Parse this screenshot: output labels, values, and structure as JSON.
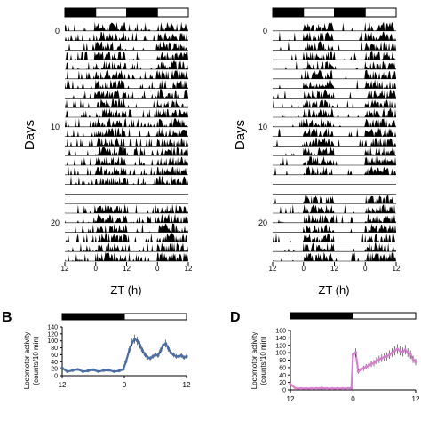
{
  "chart_data": [
    {
      "id": "actogram-left",
      "type": "heatmap",
      "ylabel": "Days",
      "xlabel": "ZT (h)",
      "x_ticks": [
        "12",
        "0",
        "12",
        "0",
        "12"
      ],
      "day_ticks": [
        0,
        10,
        20
      ],
      "day_count": 25,
      "lightdark_bar": [
        "dark",
        "light",
        "dark",
        "light"
      ],
      "missing_days": [
        17,
        18
      ]
    },
    {
      "id": "actogram-right",
      "type": "heatmap",
      "ylabel": "Days",
      "xlabel": "ZT (h)",
      "x_ticks": [
        "12",
        "0",
        "12",
        "0",
        "12"
      ],
      "day_ticks": [
        0,
        10,
        20
      ],
      "day_count": 25,
      "lightdark_bar": [
        "dark",
        "light",
        "dark",
        "light"
      ],
      "missing_days": [
        16,
        17
      ]
    },
    {
      "id": "panel-B",
      "panel_label": "B",
      "type": "line",
      "ylabel": "Locomotor activity (counts/10 min)",
      "ylim": [
        0,
        140
      ],
      "yticks": [
        0,
        20,
        40,
        60,
        80,
        100,
        120,
        140
      ],
      "xlim": [
        -12,
        12
      ],
      "x_ticks": [
        "12",
        "0",
        "12"
      ],
      "lightdark_bar": [
        "dark",
        "light"
      ],
      "color": "#4a6fa5",
      "series": [
        {
          "x": [
            -12,
            -11,
            -10,
            -9,
            -8,
            -7,
            -6,
            -5,
            -4,
            -3,
            -2,
            -1,
            -0.2,
            0.3,
            1,
            1.5,
            2,
            2.5,
            3,
            3.5,
            4,
            4.5,
            5,
            5.5,
            6,
            6.5,
            7,
            7.5,
            8,
            8.5,
            9,
            9.5,
            10,
            10.5,
            11,
            11.5,
            12
          ],
          "y": [
            22,
            12,
            15,
            18,
            12,
            14,
            17,
            12,
            15,
            16,
            12,
            14,
            18,
            40,
            75,
            95,
            105,
            100,
            88,
            72,
            60,
            52,
            50,
            55,
            60,
            58,
            72,
            88,
            92,
            78,
            65,
            60,
            55,
            55,
            58,
            52,
            55
          ]
        }
      ]
    },
    {
      "id": "panel-D",
      "panel_label": "D",
      "type": "line",
      "ylabel": "Locomotor activity (counts/10 min)",
      "ylim": [
        0,
        160
      ],
      "yticks": [
        0,
        20,
        40,
        60,
        80,
        100,
        120,
        140,
        160
      ],
      "xlim": [
        -12,
        12
      ],
      "x_ticks": [
        "12",
        "0",
        "12"
      ],
      "lightdark_bar": [
        "dark",
        "light"
      ],
      "color": "#d87fd0",
      "series": [
        {
          "x": [
            -12,
            -11,
            -10,
            -9,
            -8,
            -7,
            -6,
            -5,
            -4,
            -3,
            -2,
            -1,
            -0.3,
            0,
            0.5,
            1,
            1.5,
            2,
            2.5,
            3,
            3.5,
            4,
            4.5,
            5,
            5.5,
            6,
            6.5,
            7,
            7.5,
            8,
            8.5,
            9,
            9.5,
            10,
            10.5,
            11,
            11.5,
            12
          ],
          "y": [
            15,
            4,
            4,
            4,
            4,
            4,
            5,
            4,
            4,
            4,
            4,
            4,
            5,
            95,
            100,
            50,
            55,
            58,
            62,
            65,
            70,
            72,
            78,
            82,
            85,
            88,
            90,
            95,
            100,
            105,
            110,
            105,
            102,
            108,
            100,
            95,
            82,
            75
          ]
        }
      ]
    }
  ]
}
